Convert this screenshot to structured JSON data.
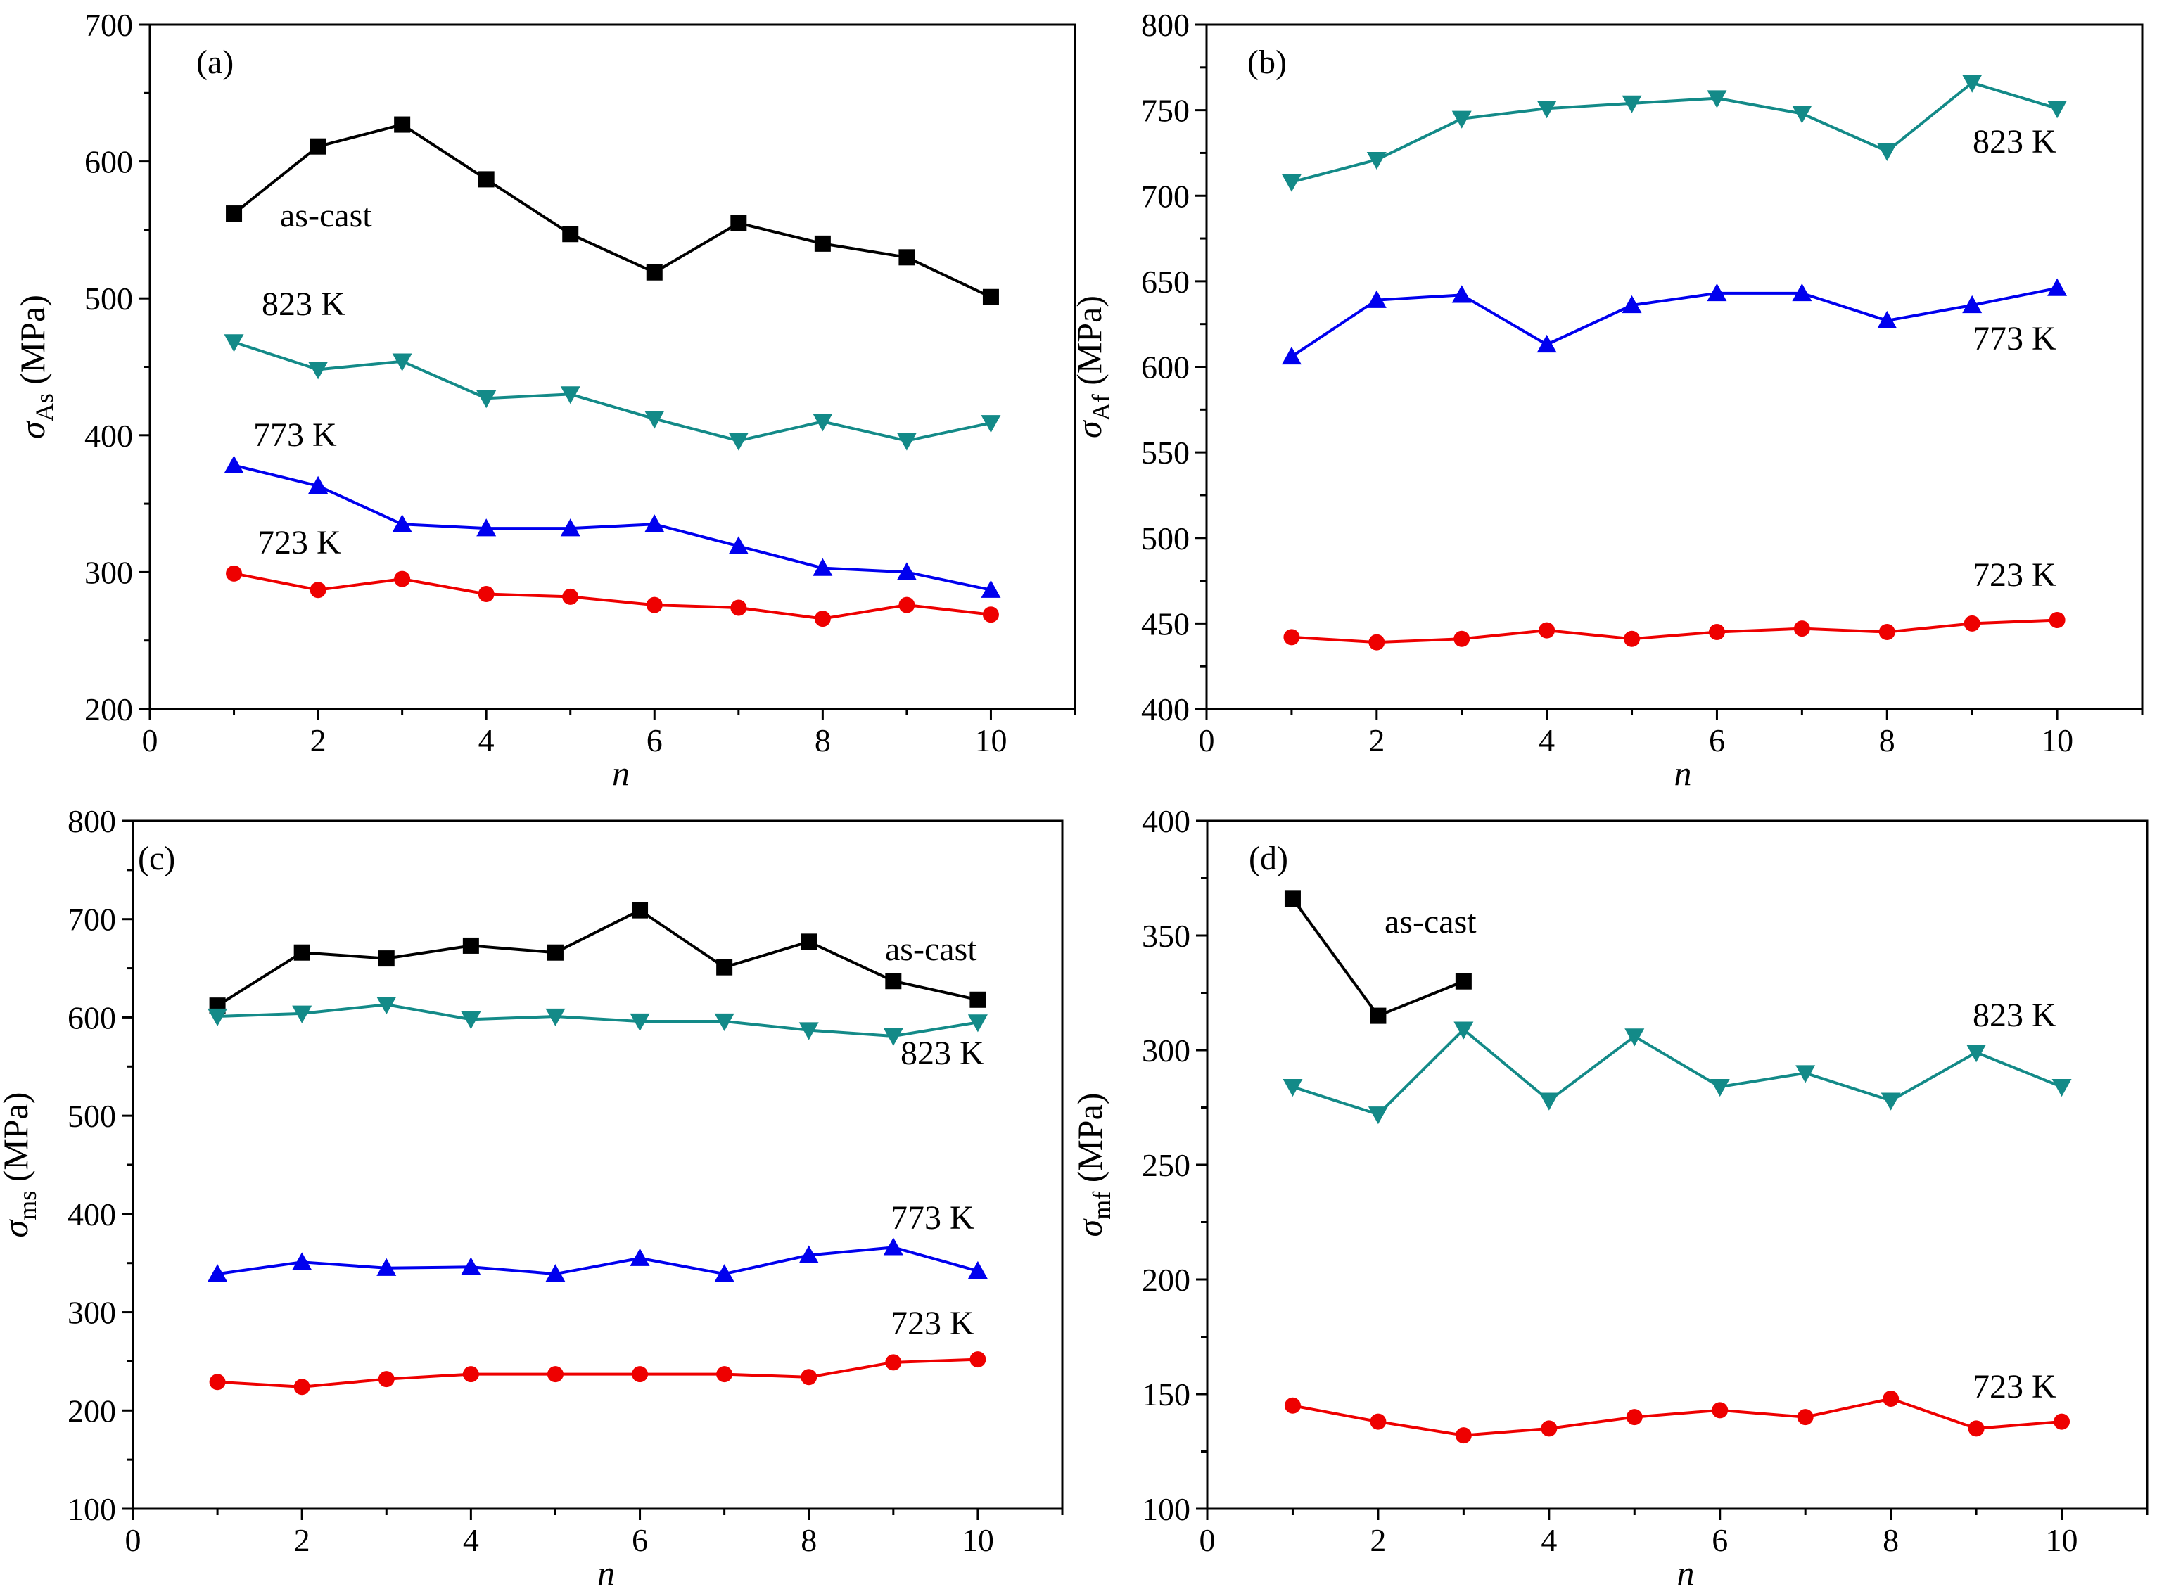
{
  "colors": {
    "as-cast": "#000000",
    "823 K": "#138a88",
    "773 K": "#0000ee",
    "723 K": "#ee0000"
  },
  "chart_data": [
    {
      "type": "line",
      "panel": "(a)",
      "xlabel": "n",
      "ylabel_symbol": "σ",
      "ylabel_sub": "As",
      "ylabel_unit": " (MPa)",
      "xlim": [
        0,
        11
      ],
      "ylim": [
        200,
        700
      ],
      "xticks": [
        0,
        2,
        4,
        6,
        8,
        10
      ],
      "yticks": [
        200,
        300,
        400,
        500,
        600,
        700
      ],
      "x": [
        1,
        2,
        3,
        4,
        5,
        6,
        7,
        8,
        9,
        10
      ],
      "series": [
        {
          "name": "as-cast",
          "marker": "square",
          "values": [
            562,
            611,
            627,
            587,
            547,
            519,
            555,
            540,
            530,
            501
          ],
          "label": "as-cast"
        },
        {
          "name": "823 K",
          "marker": "triangle-down",
          "values": [
            468,
            448,
            454,
            427,
            430,
            412,
            396,
            410,
            396,
            409
          ],
          "label": "823 K"
        },
        {
          "name": "773 K",
          "marker": "triangle-up",
          "values": [
            378,
            363,
            335,
            332,
            332,
            335,
            319,
            303,
            300,
            287
          ],
          "label": "773 K"
        },
        {
          "name": "723 K",
          "marker": "circle",
          "values": [
            299,
            287,
            295,
            284,
            282,
            276,
            274,
            266,
            276,
            269
          ],
          "label": "723 K"
        }
      ]
    },
    {
      "type": "line",
      "panel": "(b)",
      "xlabel": "n",
      "ylabel_symbol": "σ",
      "ylabel_sub": "Af",
      "ylabel_unit": " (MPa)",
      "xlim": [
        0,
        11
      ],
      "ylim": [
        400,
        800
      ],
      "xticks": [
        0,
        2,
        4,
        6,
        8,
        10
      ],
      "yticks": [
        400,
        450,
        500,
        550,
        600,
        650,
        700,
        750,
        800
      ],
      "x": [
        1,
        2,
        3,
        4,
        5,
        6,
        7,
        8,
        9,
        10
      ],
      "series": [
        {
          "name": "823 K",
          "marker": "triangle-down",
          "values": [
            708,
            721,
            745,
            751,
            754,
            757,
            748,
            726,
            766,
            751
          ],
          "label": "823 K"
        },
        {
          "name": "773 K",
          "marker": "triangle-up",
          "values": [
            606,
            639,
            642,
            613,
            636,
            643,
            643,
            627,
            636,
            646
          ],
          "label": "773 K"
        },
        {
          "name": "723 K",
          "marker": "circle",
          "values": [
            442,
            439,
            441,
            446,
            441,
            445,
            447,
            445,
            450,
            452
          ],
          "label": "723 K"
        }
      ]
    },
    {
      "type": "line",
      "panel": "(c)",
      "xlabel": "n",
      "ylabel_symbol": "σ",
      "ylabel_sub": "ms",
      "ylabel_unit": " (MPa)",
      "xlim": [
        0,
        11
      ],
      "ylim": [
        100,
        800
      ],
      "xticks": [
        0,
        2,
        4,
        6,
        8,
        10
      ],
      "yticks": [
        100,
        200,
        300,
        400,
        500,
        600,
        700,
        800
      ],
      "x": [
        1,
        2,
        3,
        4,
        5,
        6,
        7,
        8,
        9,
        10
      ],
      "series": [
        {
          "name": "as-cast",
          "marker": "square",
          "values": [
            612,
            666,
            660,
            673,
            666,
            709,
            651,
            677,
            637,
            618
          ],
          "label": "as-cast"
        },
        {
          "name": "823 K",
          "marker": "triangle-down",
          "values": [
            601,
            604,
            613,
            598,
            601,
            596,
            596,
            587,
            581,
            595
          ],
          "label": "823 K"
        },
        {
          "name": "773 K",
          "marker": "triangle-up",
          "values": [
            339,
            351,
            345,
            346,
            339,
            355,
            339,
            358,
            366,
            342
          ],
          "label": "773 K"
        },
        {
          "name": "723 K",
          "marker": "circle",
          "values": [
            229,
            224,
            232,
            237,
            237,
            237,
            237,
            234,
            249,
            252
          ],
          "label": "723 K"
        }
      ]
    },
    {
      "type": "line",
      "panel": "(d)",
      "xlabel": "n",
      "ylabel_symbol": "σ",
      "ylabel_sub": "mf",
      "ylabel_unit": " (MPa)",
      "xlim": [
        0,
        11
      ],
      "ylim": [
        100,
        400
      ],
      "xticks": [
        0,
        2,
        4,
        6,
        8,
        10
      ],
      "yticks": [
        100,
        150,
        200,
        250,
        300,
        350,
        400
      ],
      "x": [
        1,
        2,
        3,
        4,
        5,
        6,
        7,
        8,
        9,
        10
      ],
      "series": [
        {
          "name": "as-cast",
          "marker": "square",
          "x": [
            1,
            2,
            3
          ],
          "values": [
            366,
            315,
            330
          ],
          "label": "as-cast"
        },
        {
          "name": "823 K",
          "marker": "triangle-down",
          "values": [
            284,
            272,
            309,
            278,
            306,
            284,
            290,
            278,
            299,
            284
          ],
          "label": "823 K"
        },
        {
          "name": "723 K",
          "marker": "circle",
          "values": [
            145,
            138,
            132,
            135,
            140,
            143,
            140,
            148,
            135,
            138
          ],
          "label": "723 K"
        }
      ]
    }
  ]
}
